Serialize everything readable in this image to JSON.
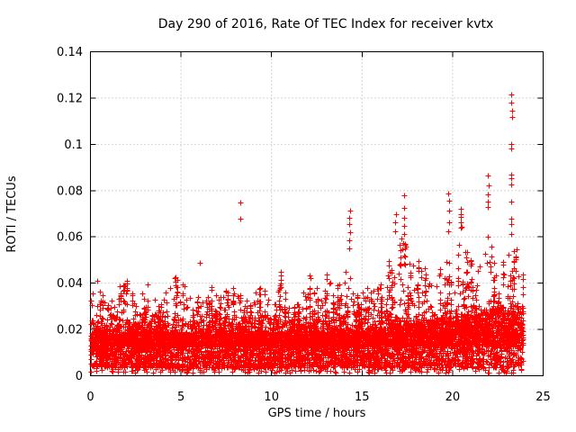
{
  "window": {
    "background": "#ffffff"
  },
  "chart_data": {
    "type": "scatter",
    "title": "Day 290 of 2016, Rate Of TEC Index for receiver kvtx",
    "xlabel": "GPS time / hours",
    "ylabel": "ROTI / TECUs",
    "series": [
      {
        "name": "ROTI",
        "marker": "plus",
        "color": "#ff0000"
      }
    ],
    "xlim": [
      0,
      25
    ],
    "ylim": [
      0,
      0.14
    ],
    "xticks": [
      0,
      5,
      10,
      15,
      20,
      25
    ],
    "xtick_labels": [
      "0",
      "5",
      "10",
      "15",
      "20",
      "25"
    ],
    "yticks": [
      0,
      0.02,
      0.04,
      0.06,
      0.08,
      0.1,
      0.12,
      0.14
    ],
    "ytick_labels": [
      "0",
      "0.02",
      "0.04",
      "0.06",
      "0.08",
      "0.1",
      "0.12",
      "0.14"
    ],
    "grid": {
      "show": true,
      "color": "#a8a8a8",
      "style": "dotted"
    },
    "axis_color": "#000000",
    "legend": null,
    "x_data_range": [
      0,
      23.9
    ],
    "n_points": 8000,
    "seed": 290,
    "band": {
      "floor": 0.0035,
      "core_span": 0.0155,
      "mid_base": 0.013,
      "mid_span": 0.015,
      "late_boost_start": 15,
      "late_boost_max": 0.8
    },
    "envelope": [
      [
        0,
        0.034
      ],
      [
        0.4,
        0.042
      ],
      [
        0.9,
        0.032
      ],
      [
        1.5,
        0.039
      ],
      [
        2,
        0.042
      ],
      [
        2.5,
        0.032
      ],
      [
        3.1,
        0.041
      ],
      [
        3.7,
        0.033
      ],
      [
        4.3,
        0.037
      ],
      [
        4.7,
        0.044
      ],
      [
        5.2,
        0.039
      ],
      [
        5.7,
        0.033
      ],
      [
        6.3,
        0.037
      ],
      [
        6.9,
        0.04
      ],
      [
        7.4,
        0.036
      ],
      [
        7.8,
        0.041
      ],
      [
        8.3,
        0.037
      ],
      [
        8.8,
        0.032
      ],
      [
        9.5,
        0.04
      ],
      [
        10.1,
        0.029
      ],
      [
        10.5,
        0.044
      ],
      [
        11,
        0.029
      ],
      [
        11.6,
        0.035
      ],
      [
        12.2,
        0.045
      ],
      [
        12.7,
        0.034
      ],
      [
        13,
        0.048
      ],
      [
        13.5,
        0.037
      ],
      [
        14,
        0.046
      ],
      [
        14.35,
        0.054
      ],
      [
        14.8,
        0.034
      ],
      [
        15.3,
        0.042
      ],
      [
        15.8,
        0.039
      ],
      [
        16.3,
        0.047
      ],
      [
        16.9,
        0.056
      ],
      [
        17.4,
        0.063
      ],
      [
        17.8,
        0.048
      ],
      [
        18.3,
        0.052
      ],
      [
        18.8,
        0.041
      ],
      [
        19.3,
        0.047
      ],
      [
        19.8,
        0.06
      ],
      [
        20.2,
        0.053
      ],
      [
        20.5,
        0.066
      ],
      [
        20.9,
        0.058
      ],
      [
        21.4,
        0.049
      ],
      [
        22,
        0.062
      ],
      [
        22.5,
        0.052
      ],
      [
        22.9,
        0.05
      ],
      [
        23.3,
        0.06
      ],
      [
        23.6,
        0.055
      ],
      [
        23.9,
        0.048
      ]
    ],
    "spikes": [
      {
        "x": 6.02,
        "ys": [
          0.049
        ]
      },
      {
        "x": 8.27,
        "ys": [
          0.0747,
          0.068
        ]
      },
      {
        "x": 10.5,
        "ys": [
          0.0448,
          0.0432,
          0.0415,
          0.0398,
          0.0382
        ]
      },
      {
        "x": 14.3,
        "ys": [
          0.0712,
          0.0682,
          0.0655,
          0.0622,
          0.0585,
          0.0552
        ]
      },
      {
        "x": 16.85,
        "ys": [
          0.07,
          0.0662,
          0.0625
        ]
      },
      {
        "x": 17.3,
        "ys": [
          0.0778,
          0.0725,
          0.0682,
          0.0648,
          0.0612,
          0.0575
        ]
      },
      {
        "x": 19.78,
        "ys": [
          0.0786,
          0.0757,
          0.0712,
          0.0664,
          0.0625
        ]
      },
      {
        "x": 20.45,
        "ys": [
          0.0722,
          0.07,
          0.0685,
          0.0662,
          0.064
        ]
      },
      {
        "x": 21.95,
        "ys": [
          0.0866,
          0.0822,
          0.0785,
          0.0752,
          0.0728
        ]
      },
      {
        "x": 23.25,
        "ys": [
          0.1216,
          0.118,
          0.1145,
          0.1118,
          0.1,
          0.0983,
          0.087,
          0.0855,
          0.0827,
          0.0752,
          0.068,
          0.0655,
          0.0614
        ]
      }
    ]
  }
}
